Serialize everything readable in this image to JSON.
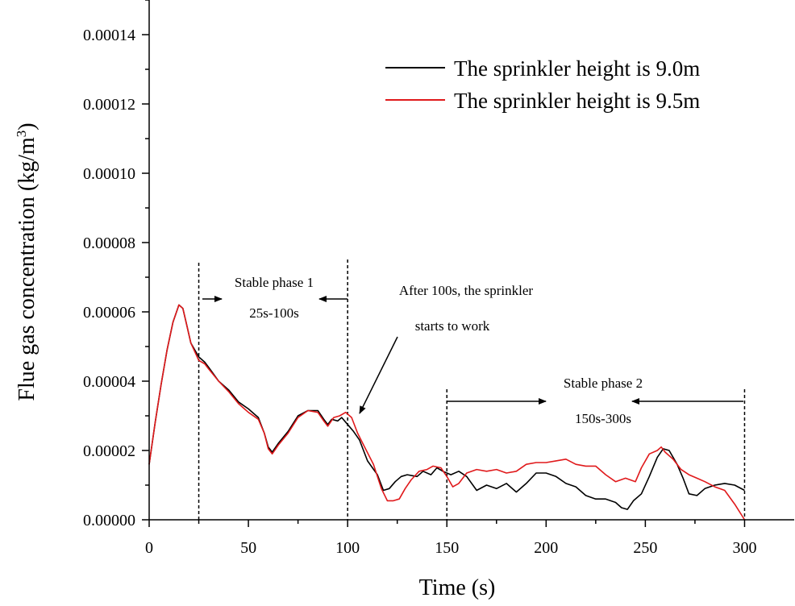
{
  "chart_data": {
    "type": "line",
    "title": "",
    "xlabel": "Time (s)",
    "ylabel_main": "Flue gas concentration (kg/m",
    "ylabel_sup": "3",
    "ylabel_close": ")",
    "xlim": [
      0,
      325
    ],
    "ylim": [
      0,
      0.00015
    ],
    "xticks": [
      0,
      50,
      100,
      150,
      200,
      250,
      300
    ],
    "xtick_labels": [
      "0",
      "50",
      "100",
      "150",
      "200",
      "250",
      "300"
    ],
    "yticks": [
      0,
      2e-05,
      4e-05,
      6e-05,
      8e-05,
      0.0001,
      0.00012,
      0.00014
    ],
    "ytick_labels": [
      "0.00000",
      "0.00002",
      "0.00004",
      "0.00006",
      "0.00008",
      "0.00010",
      "0.00012",
      "0.00014"
    ],
    "legend_position": "top-right",
    "series": [
      {
        "name": "The sprinkler height is 9.0m",
        "color": "#000000",
        "points": [
          [
            0,
            1.6e-05
          ],
          [
            3,
            2.8e-05
          ],
          [
            6,
            3.9e-05
          ],
          [
            9,
            4.9e-05
          ],
          [
            12,
            5.7e-05
          ],
          [
            15,
            6.2e-05
          ],
          [
            17,
            6.1e-05
          ],
          [
            19,
            5.6e-05
          ],
          [
            21,
            5.1e-05
          ],
          [
            23,
            4.9e-05
          ],
          [
            25,
            4.7e-05
          ],
          [
            28,
            4.55e-05
          ],
          [
            30,
            4.4e-05
          ],
          [
            35,
            4e-05
          ],
          [
            40,
            3.75e-05
          ],
          [
            45,
            3.4e-05
          ],
          [
            50,
            3.2e-05
          ],
          [
            55,
            2.95e-05
          ],
          [
            58,
            2.5e-05
          ],
          [
            60,
            2.1e-05
          ],
          [
            62,
            1.95e-05
          ],
          [
            65,
            2.2e-05
          ],
          [
            70,
            2.55e-05
          ],
          [
            75,
            3e-05
          ],
          [
            80,
            3.15e-05
          ],
          [
            85,
            3.15e-05
          ],
          [
            88,
            2.9e-05
          ],
          [
            90,
            2.75e-05
          ],
          [
            92,
            2.9e-05
          ],
          [
            95,
            2.85e-05
          ],
          [
            97,
            2.95e-05
          ],
          [
            100,
            2.75e-05
          ],
          [
            103,
            2.55e-05
          ],
          [
            106,
            2.3e-05
          ],
          [
            110,
            1.7e-05
          ],
          [
            115,
            1.3e-05
          ],
          [
            118,
            8.5e-06
          ],
          [
            121,
            9e-06
          ],
          [
            124,
            1.1e-05
          ],
          [
            127,
            1.25e-05
          ],
          [
            130,
            1.3e-05
          ],
          [
            135,
            1.25e-05
          ],
          [
            138,
            1.4e-05
          ],
          [
            142,
            1.3e-05
          ],
          [
            145,
            1.5e-05
          ],
          [
            148,
            1.4e-05
          ],
          [
            152,
            1.3e-05
          ],
          [
            156,
            1.4e-05
          ],
          [
            160,
            1.25e-05
          ],
          [
            165,
            8.5e-06
          ],
          [
            170,
            1e-05
          ],
          [
            175,
            9e-06
          ],
          [
            180,
            1.05e-05
          ],
          [
            185,
            8e-06
          ],
          [
            190,
            1.05e-05
          ],
          [
            195,
            1.35e-05
          ],
          [
            200,
            1.35e-05
          ],
          [
            205,
            1.25e-05
          ],
          [
            210,
            1.05e-05
          ],
          [
            215,
            9.5e-06
          ],
          [
            220,
            7e-06
          ],
          [
            225,
            6e-06
          ],
          [
            230,
            6e-06
          ],
          [
            235,
            5e-06
          ],
          [
            238,
            3.5e-06
          ],
          [
            241,
            3e-06
          ],
          [
            244,
            5.5e-06
          ],
          [
            248,
            7.5e-06
          ],
          [
            252,
            1.25e-05
          ],
          [
            256,
            1.8e-05
          ],
          [
            259,
            2.05e-05
          ],
          [
            262,
            2e-05
          ],
          [
            266,
            1.6e-05
          ],
          [
            269,
            1.2e-05
          ],
          [
            272,
            7.5e-06
          ],
          [
            276,
            7e-06
          ],
          [
            280,
            9e-06
          ],
          [
            285,
            1e-05
          ],
          [
            290,
            1.05e-05
          ],
          [
            295,
            1e-05
          ],
          [
            300,
            8.5e-06
          ]
        ]
      },
      {
        "name": "The sprinkler height is 9.5m",
        "color": "#e0191b",
        "points": [
          [
            0,
            1.6e-05
          ],
          [
            3,
            2.8e-05
          ],
          [
            6,
            3.9e-05
          ],
          [
            9,
            4.9e-05
          ],
          [
            12,
            5.7e-05
          ],
          [
            15,
            6.2e-05
          ],
          [
            17,
            6.1e-05
          ],
          [
            19,
            5.6e-05
          ],
          [
            21,
            5.1e-05
          ],
          [
            23,
            4.85e-05
          ],
          [
            25,
            4.6e-05
          ],
          [
            28,
            4.5e-05
          ],
          [
            30,
            4.35e-05
          ],
          [
            35,
            4e-05
          ],
          [
            40,
            3.7e-05
          ],
          [
            45,
            3.35e-05
          ],
          [
            50,
            3.1e-05
          ],
          [
            55,
            2.9e-05
          ],
          [
            58,
            2.5e-05
          ],
          [
            60,
            2.05e-05
          ],
          [
            62,
            1.9e-05
          ],
          [
            65,
            2.15e-05
          ],
          [
            70,
            2.5e-05
          ],
          [
            75,
            2.95e-05
          ],
          [
            80,
            3.15e-05
          ],
          [
            85,
            3.1e-05
          ],
          [
            88,
            2.85e-05
          ],
          [
            90,
            2.7e-05
          ],
          [
            93,
            2.95e-05
          ],
          [
            96,
            3e-05
          ],
          [
            99,
            3.1e-05
          ],
          [
            102,
            2.95e-05
          ],
          [
            105,
            2.5e-05
          ],
          [
            109,
            2.05e-05
          ],
          [
            113,
            1.6e-05
          ],
          [
            117,
            9e-06
          ],
          [
            120,
            5.5e-06
          ],
          [
            123,
            5.5e-06
          ],
          [
            126,
            6e-06
          ],
          [
            129,
            9e-06
          ],
          [
            132,
            1.15e-05
          ],
          [
            136,
            1.4e-05
          ],
          [
            140,
            1.45e-05
          ],
          [
            143,
            1.55e-05
          ],
          [
            147,
            1.5e-05
          ],
          [
            150,
            1.25e-05
          ],
          [
            153,
            9.5e-06
          ],
          [
            156,
            1.05e-05
          ],
          [
            160,
            1.35e-05
          ],
          [
            165,
            1.45e-05
          ],
          [
            170,
            1.4e-05
          ],
          [
            175,
            1.45e-05
          ],
          [
            180,
            1.35e-05
          ],
          [
            185,
            1.4e-05
          ],
          [
            190,
            1.6e-05
          ],
          [
            195,
            1.65e-05
          ],
          [
            200,
            1.65e-05
          ],
          [
            205,
            1.7e-05
          ],
          [
            210,
            1.75e-05
          ],
          [
            215,
            1.6e-05
          ],
          [
            220,
            1.55e-05
          ],
          [
            225,
            1.55e-05
          ],
          [
            230,
            1.3e-05
          ],
          [
            235,
            1.1e-05
          ],
          [
            240,
            1.2e-05
          ],
          [
            245,
            1.1e-05
          ],
          [
            248,
            1.5e-05
          ],
          [
            252,
            1.9e-05
          ],
          [
            256,
            2e-05
          ],
          [
            258,
            2.1e-05
          ],
          [
            260,
            1.95e-05
          ],
          [
            264,
            1.75e-05
          ],
          [
            268,
            1.45e-05
          ],
          [
            272,
            1.3e-05
          ],
          [
            276,
            1.2e-05
          ],
          [
            280,
            1.1e-05
          ],
          [
            285,
            9.5e-06
          ],
          [
            290,
            8.5e-06
          ],
          [
            295,
            4.5e-06
          ],
          [
            300,
            0.0
          ]
        ]
      }
    ],
    "vlines": [
      25,
      100,
      150,
      300
    ],
    "annotations": {
      "phase1_label": "Stable phase 1",
      "phase1_range": "25s-100s",
      "sprinkler_line1": "After 100s, the sprinkler",
      "sprinkler_line2": "starts to work",
      "phase2_label": "Stable phase 2",
      "phase2_range": "150s-300s"
    }
  }
}
